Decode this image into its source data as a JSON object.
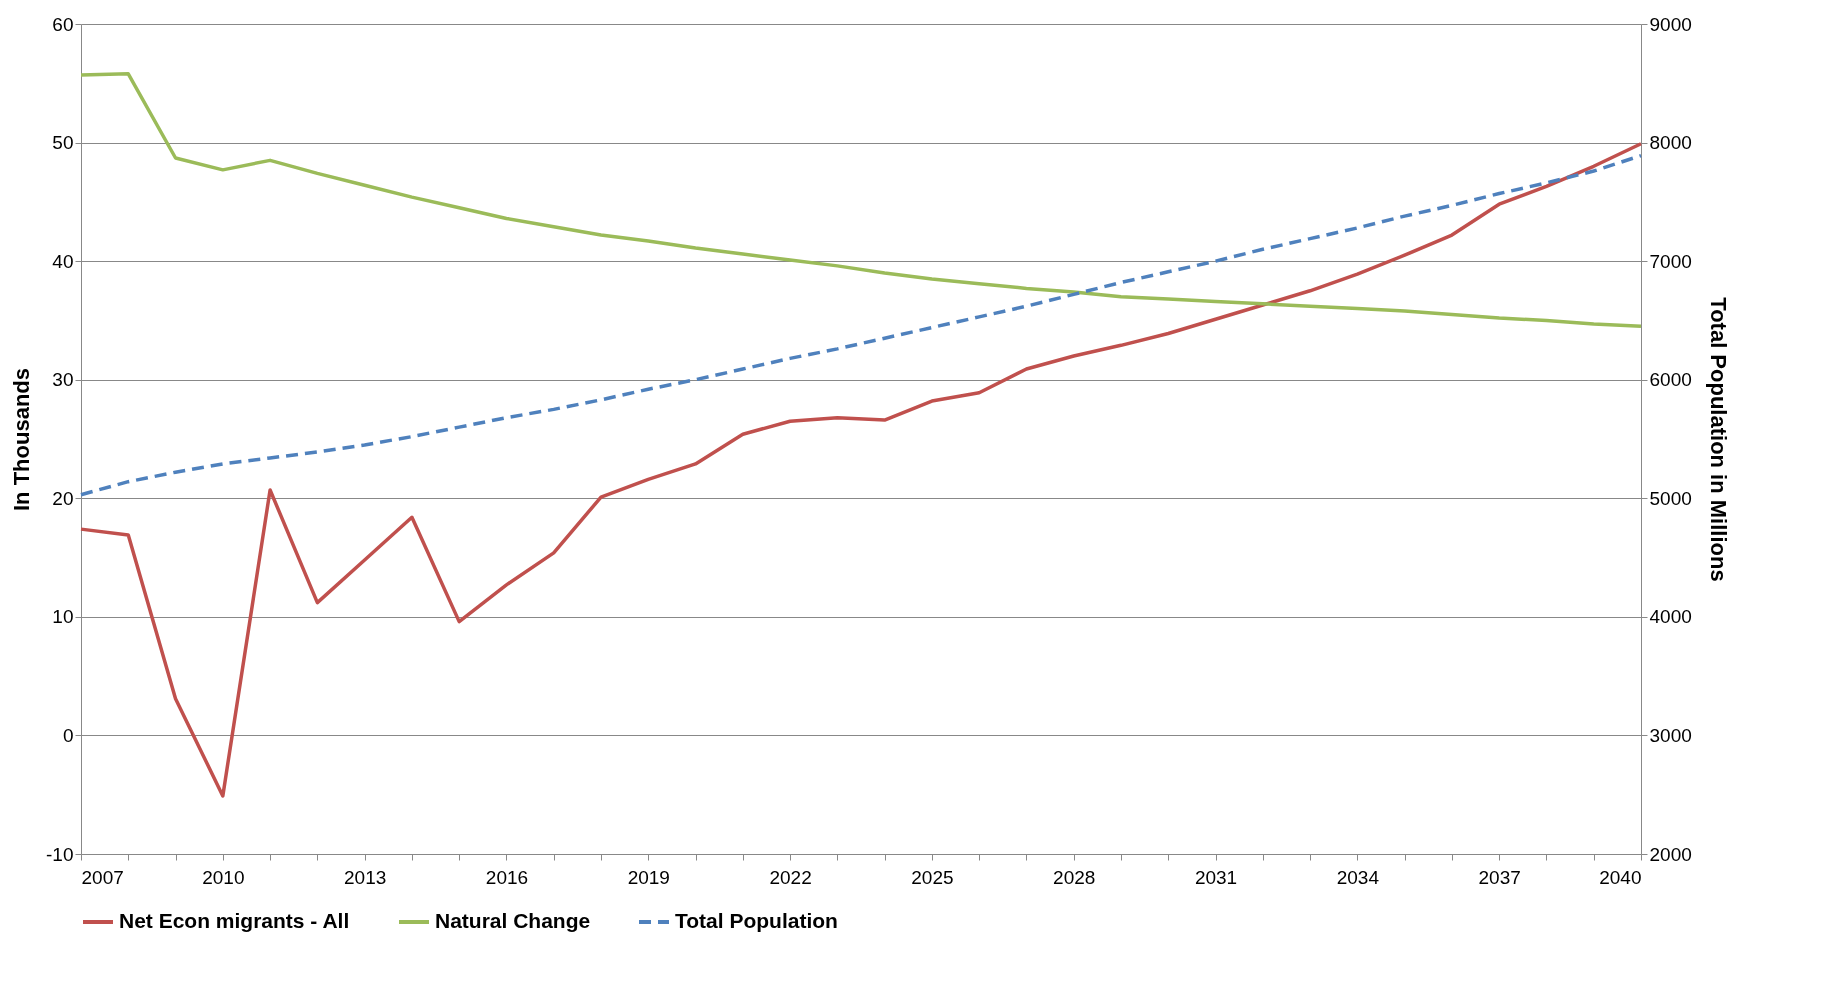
{
  "chart_data": {
    "type": "line",
    "ylabel": "In Thousands",
    "y2label": "Total Population in Millions",
    "x": [
      2007,
      2008,
      2009,
      2010,
      2011,
      2012,
      2013,
      2014,
      2015,
      2016,
      2017,
      2018,
      2019,
      2020,
      2021,
      2022,
      2023,
      2024,
      2025,
      2026,
      2027,
      2028,
      2029,
      2030,
      2031,
      2032,
      2033,
      2034,
      2035,
      2036,
      2037,
      2038,
      2039,
      2040
    ],
    "series": [
      {
        "name": "Net Econ migrants - All",
        "color": "#c0504d",
        "values": [
          17.4,
          16.9,
          3.1,
          -5.1,
          20.7,
          11.2,
          14.8,
          18.4,
          9.6,
          12.7,
          15.4,
          20.1,
          21.6,
          22.9,
          25.4,
          26.5,
          26.8,
          26.6,
          28.2,
          28.9,
          30.9,
          32.0,
          32.9,
          33.9,
          35.1,
          36.3,
          37.5,
          38.9,
          40.5,
          42.2,
          44.8,
          46.3,
          48.0,
          49.9
        ]
      },
      {
        "name": "Natural Change",
        "color": "#9bbb59",
        "values": [
          55.7,
          55.8,
          48.7,
          47.7,
          48.5,
          47.4,
          46.4,
          45.4,
          44.5,
          43.6,
          42.9,
          42.2,
          41.7,
          41.1,
          40.6,
          40.1,
          39.6,
          39.0,
          38.5,
          38.1,
          37.7,
          37.4,
          37.0,
          36.8,
          36.6,
          36.4,
          36.2,
          36.0,
          35.8,
          35.5,
          35.2,
          35.0,
          34.7,
          34.5
        ]
      },
      {
        "name": "Total Population",
        "color": "#4f81bd",
        "axis": "y2",
        "line_style": "dashed",
        "values": [
          5030,
          5140,
          5220,
          5290,
          5340,
          5390,
          5450,
          5520,
          5600,
          5680,
          5750,
          5830,
          5920,
          6000,
          6090,
          6180,
          6260,
          6350,
          6440,
          6530,
          6620,
          6720,
          6820,
          6910,
          7000,
          7100,
          7190,
          7280,
          7380,
          7470,
          7570,
          7660,
          7760,
          7890
        ]
      }
    ],
    "xlim": [
      2007,
      2040
    ],
    "xticks": [
      2007,
      {
        "value": 2008,
        "label": null
      },
      {
        "value": 2009,
        "label": null
      },
      2010,
      {
        "value": 2011,
        "label": null
      },
      {
        "value": 2012,
        "label": null
      },
      2013,
      {
        "value": 2014,
        "label": null
      },
      {
        "value": 2015,
        "label": null
      },
      2016,
      {
        "value": 2017,
        "label": null
      },
      {
        "value": 2018,
        "label": null
      },
      2019,
      {
        "value": 2020,
        "label": null
      },
      {
        "value": 2021,
        "label": null
      },
      2022,
      {
        "value": 2023,
        "label": null
      },
      {
        "value": 2024,
        "label": null
      },
      2025,
      {
        "value": 2026,
        "label": null
      },
      {
        "value": 2027,
        "label": null
      },
      2028,
      {
        "value": 2029,
        "label": null
      },
      {
        "value": 2030,
        "label": null
      },
      2031,
      {
        "value": 2032,
        "label": null
      },
      {
        "value": 2033,
        "label": null
      },
      2034,
      {
        "value": 2035,
        "label": null
      },
      {
        "value": 2036,
        "label": null
      },
      2037,
      {
        "value": 2038,
        "label": null
      },
      {
        "value": 2039,
        "label": null
      },
      2040
    ],
    "ylim": [
      -10,
      60
    ],
    "yticks": [
      -10,
      0,
      10,
      20,
      30,
      40,
      50,
      60
    ],
    "y2lim": [
      2000,
      9000
    ],
    "y2ticks": [
      2000,
      3000,
      4000,
      5000,
      6000,
      7000,
      8000,
      9000
    ],
    "grid": "y",
    "legend": "bottom",
    "marker": "none"
  }
}
